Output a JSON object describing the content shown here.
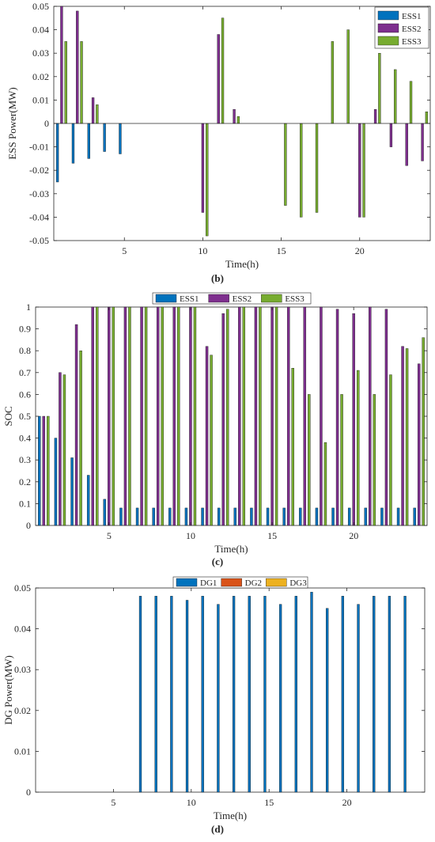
{
  "chart_data": [
    {
      "id": "b",
      "type": "bar",
      "panel_label": "(b)",
      "xlabel": "Time(h)",
      "ylabel": "ESS Power(MW)",
      "xlim": [
        0.5,
        24.5
      ],
      "ylim": [
        -0.05,
        0.05
      ],
      "xticks": [
        5,
        10,
        15,
        20
      ],
      "yticks": [
        -0.05,
        -0.04,
        -0.03,
        -0.02,
        -0.01,
        0,
        0.01,
        0.02,
        0.03,
        0.04,
        0.05
      ],
      "ytick_labels": [
        "-0.05",
        "-0.04",
        "-0.03",
        "-0.02",
        "-0.01",
        "0",
        "0.01",
        "0.02",
        "0.03",
        "0.04",
        "0.05"
      ],
      "grid": false,
      "legend_position": "top-right",
      "categories": [
        1,
        2,
        3,
        4,
        5,
        6,
        7,
        8,
        9,
        10,
        11,
        12,
        13,
        14,
        15,
        16,
        17,
        18,
        19,
        20,
        21,
        22,
        23,
        24
      ],
      "series": [
        {
          "name": "ESS1",
          "color": "#0072BD",
          "values": [
            -0.025,
            -0.017,
            -0.015,
            -0.012,
            -0.013,
            0,
            0,
            0,
            0,
            0,
            0,
            0,
            0,
            0,
            0,
            0,
            0,
            0,
            0,
            0,
            0,
            0,
            0,
            0
          ]
        },
        {
          "name": "ESS2",
          "color": "#7E2F8E",
          "values": [
            0.05,
            0.048,
            0.011,
            0,
            0,
            0,
            0,
            0,
            0,
            -0.038,
            0.038,
            0.006,
            0,
            0,
            0,
            0,
            0,
            0,
            0,
            -0.04,
            0.006,
            -0.01,
            -0.018,
            -0.016
          ]
        },
        {
          "name": "ESS3",
          "color": "#77AC30",
          "values": [
            0.035,
            0.035,
            0.008,
            0,
            0,
            0,
            0,
            0,
            0,
            -0.048,
            0.045,
            0.003,
            0,
            0,
            -0.035,
            -0.04,
            -0.038,
            0.035,
            0.04,
            -0.04,
            0.03,
            0.023,
            0.018,
            0.005
          ]
        }
      ]
    },
    {
      "id": "c",
      "type": "bar",
      "panel_label": "(c)",
      "xlabel": "Time(h)",
      "ylabel": "SOC",
      "xlim": [
        0.5,
        24.5
      ],
      "ylim": [
        0,
        1
      ],
      "xticks": [
        5,
        10,
        15,
        20
      ],
      "yticks": [
        0,
        0.1,
        0.2,
        0.3,
        0.4,
        0.5,
        0.6,
        0.7,
        0.8,
        0.9,
        1
      ],
      "ytick_labels": [
        "0",
        "0.1",
        "0.2",
        "0.3",
        "0.4",
        "0.5",
        "0.6",
        "0.7",
        "0.8",
        "0.9",
        "1"
      ],
      "grid": false,
      "legend_position": "top-center",
      "categories": [
        1,
        2,
        3,
        4,
        5,
        6,
        7,
        8,
        9,
        10,
        11,
        12,
        13,
        14,
        15,
        16,
        17,
        18,
        19,
        20,
        21,
        22,
        23,
        24
      ],
      "series": [
        {
          "name": "ESS1",
          "color": "#0072BD",
          "values": [
            0.5,
            0.4,
            0.31,
            0.23,
            0.12,
            0.08,
            0.08,
            0.08,
            0.08,
            0.08,
            0.08,
            0.08,
            0.08,
            0.08,
            0.08,
            0.08,
            0.08,
            0.08,
            0.08,
            0.08,
            0.08,
            0.08,
            0.08,
            0.08
          ]
        },
        {
          "name": "ESS2",
          "color": "#7E2F8E",
          "values": [
            0.5,
            0.7,
            0.92,
            1,
            1,
            1,
            1,
            1,
            1,
            1,
            0.82,
            0.97,
            1,
            1,
            1,
            1,
            1,
            1,
            0.99,
            0.97,
            1,
            0.99,
            0.82,
            0.74
          ]
        },
        {
          "name": "ESS3",
          "color": "#77AC30",
          "values": [
            0.5,
            0.69,
            0.8,
            1,
            1,
            1,
            1,
            1,
            1,
            1,
            0.78,
            0.99,
            1,
            1,
            1,
            0.72,
            0.6,
            0.38,
            0.6,
            0.71,
            0.6,
            0.69,
            0.81,
            0.86
          ]
        }
      ]
    },
    {
      "id": "d",
      "type": "bar",
      "panel_label": "(d)",
      "xlabel": "Time(h)",
      "ylabel": "DG Power(MW)",
      "xlim": [
        0,
        25
      ],
      "ylim": [
        0,
        0.05
      ],
      "xticks": [
        5,
        10,
        15,
        20
      ],
      "yticks": [
        0,
        0.01,
        0.02,
        0.03,
        0.04,
        0.05
      ],
      "ytick_labels": [
        "0",
        "0.01",
        "0.02",
        "0.03",
        "0.04",
        "0.05"
      ],
      "grid": false,
      "legend_position": "top-center",
      "categories": [
        1,
        2,
        3,
        4,
        5,
        6,
        7,
        8,
        9,
        10,
        11,
        12,
        13,
        14,
        15,
        16,
        17,
        18,
        19,
        20,
        21,
        22,
        23,
        24
      ],
      "series": [
        {
          "name": "DG1",
          "color": "#0072BD",
          "values": [
            0,
            0,
            0,
            0,
            0,
            0,
            0.048,
            0.048,
            0.048,
            0.047,
            0.048,
            0.046,
            0.048,
            0.048,
            0.048,
            0.046,
            0.048,
            0.049,
            0.045,
            0.048,
            0.046,
            0.048,
            0.048,
            0.048
          ]
        },
        {
          "name": "DG2",
          "color": "#D95319",
          "values": [
            0,
            0,
            0,
            0,
            0,
            0,
            0,
            0,
            0,
            0,
            0,
            0,
            0,
            0,
            0,
            0,
            0,
            0,
            0,
            0,
            0,
            0,
            0,
            0
          ]
        },
        {
          "name": "DG3",
          "color": "#EDB120",
          "values": [
            0,
            0,
            0,
            0,
            0,
            0,
            0,
            0,
            0,
            0,
            0,
            0,
            0,
            0,
            0,
            0,
            0,
            0,
            0,
            0,
            0,
            0,
            0,
            0
          ]
        }
      ]
    }
  ]
}
